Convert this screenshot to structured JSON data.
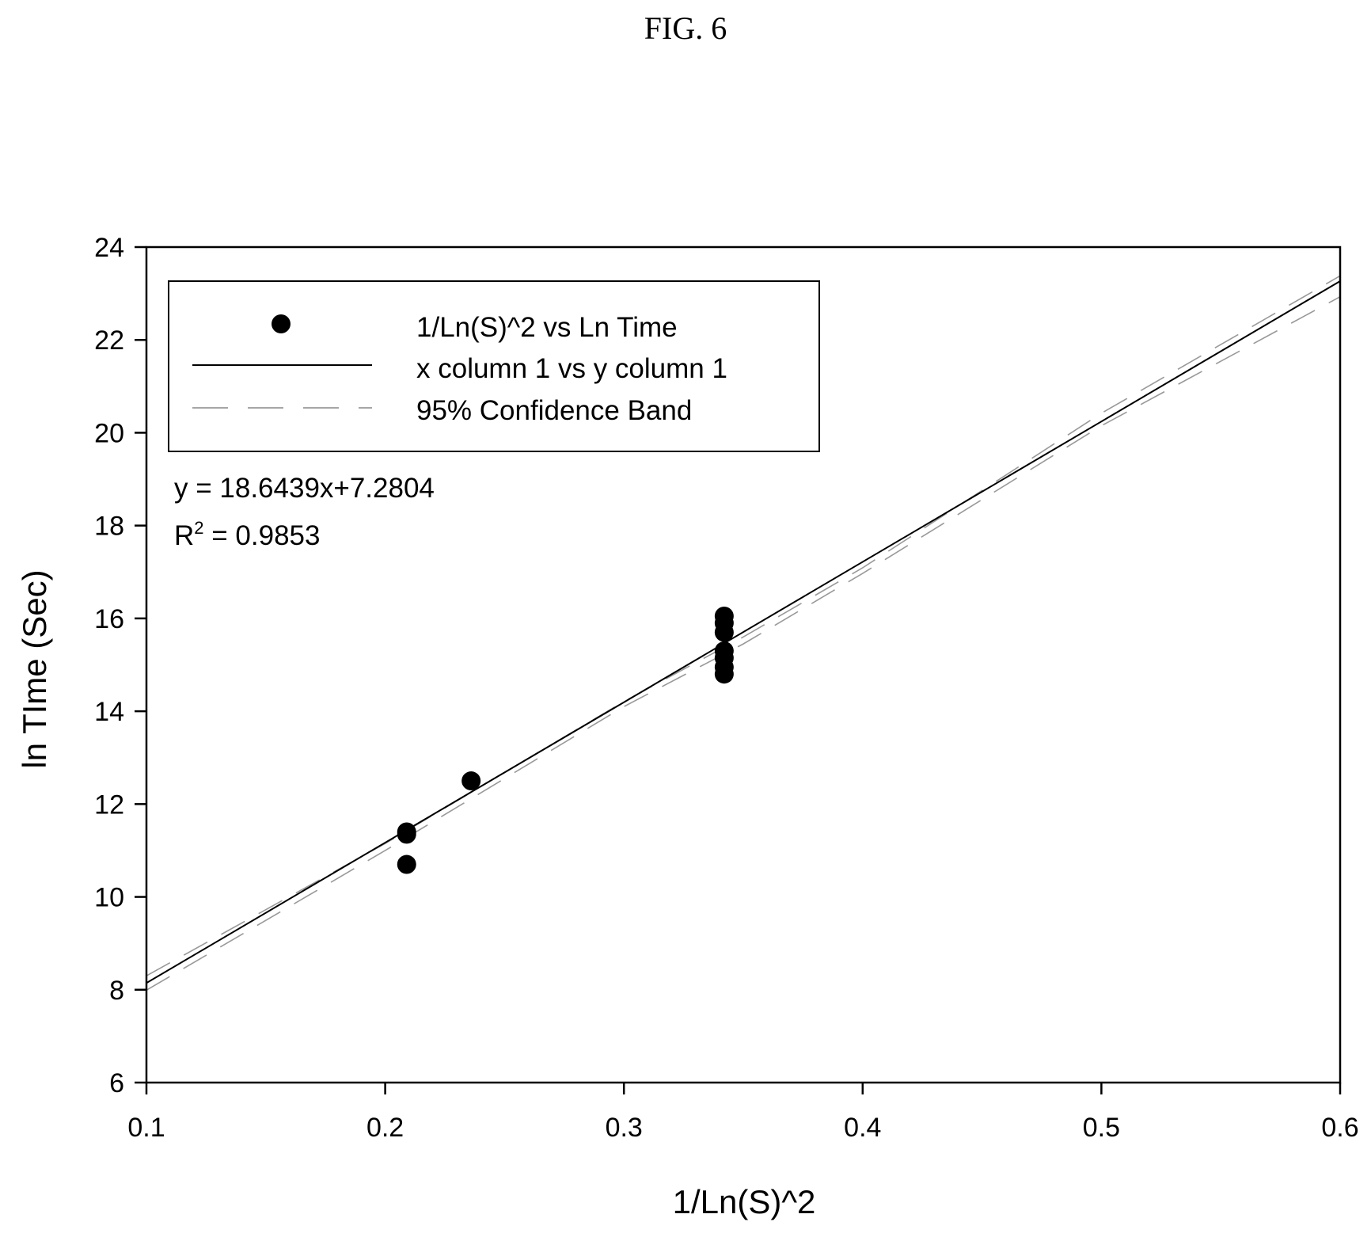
{
  "figure_title": "FIG. 6",
  "chart_data": {
    "type": "scatter",
    "xlabel": "1/Ln(S)^2",
    "ylabel": "ln TIme (Sec)",
    "xlim": [
      0.1,
      0.6
    ],
    "ylim": [
      6,
      24
    ],
    "x_ticks": [
      "0.1",
      "0.2",
      "0.3",
      "0.4",
      "0.5",
      "0.6"
    ],
    "y_ticks": [
      "6",
      "8",
      "10",
      "12",
      "14",
      "16",
      "18",
      "20",
      "22",
      "24"
    ],
    "grid": false,
    "legend_position": "top-left",
    "legend": [
      {
        "label": "1/Ln(S)^2 vs Ln Time",
        "style": "marker"
      },
      {
        "label": "x column 1 vs y column 1",
        "style": "solid"
      },
      {
        "label": "95% Confidence Band",
        "style": "dashed"
      }
    ],
    "equation": "y = 18.6439x+7.2804",
    "r2_prefix": "R",
    "r2_sup": "2",
    "r2_value": " = 0.9853",
    "series": [
      {
        "name": "1/Ln(S)^2 vs Ln Time",
        "type": "scatter",
        "color": "#000000",
        "points": [
          {
            "x": 0.209,
            "y": 11.4
          },
          {
            "x": 0.209,
            "y": 11.35
          },
          {
            "x": 0.209,
            "y": 10.7
          },
          {
            "x": 0.236,
            "y": 12.5
          },
          {
            "x": 0.342,
            "y": 16.05
          },
          {
            "x": 0.342,
            "y": 15.9
          },
          {
            "x": 0.342,
            "y": 15.7
          },
          {
            "x": 0.342,
            "y": 15.3
          },
          {
            "x": 0.342,
            "y": 15.15
          },
          {
            "x": 0.342,
            "y": 14.95
          },
          {
            "x": 0.342,
            "y": 14.8
          }
        ]
      },
      {
        "name": "x column 1 vs y column 1",
        "type": "line",
        "color": "#000000",
        "x": [
          0.1,
          0.6
        ],
        "y": [
          8.1448,
          23.2667
        ]
      },
      {
        "name": "95% Confidence Band",
        "type": "band",
        "color": "#999999",
        "x": [
          0.1,
          0.2,
          0.3,
          0.35,
          0.4,
          0.5,
          0.6
        ],
        "upper": [
          8.3,
          11.15,
          14.21,
          15.6,
          17.09,
          20.42,
          23.38
        ],
        "lower": [
          7.99,
          11.0,
          14.1,
          15.45,
          16.97,
          20.15,
          22.93
        ]
      }
    ]
  }
}
